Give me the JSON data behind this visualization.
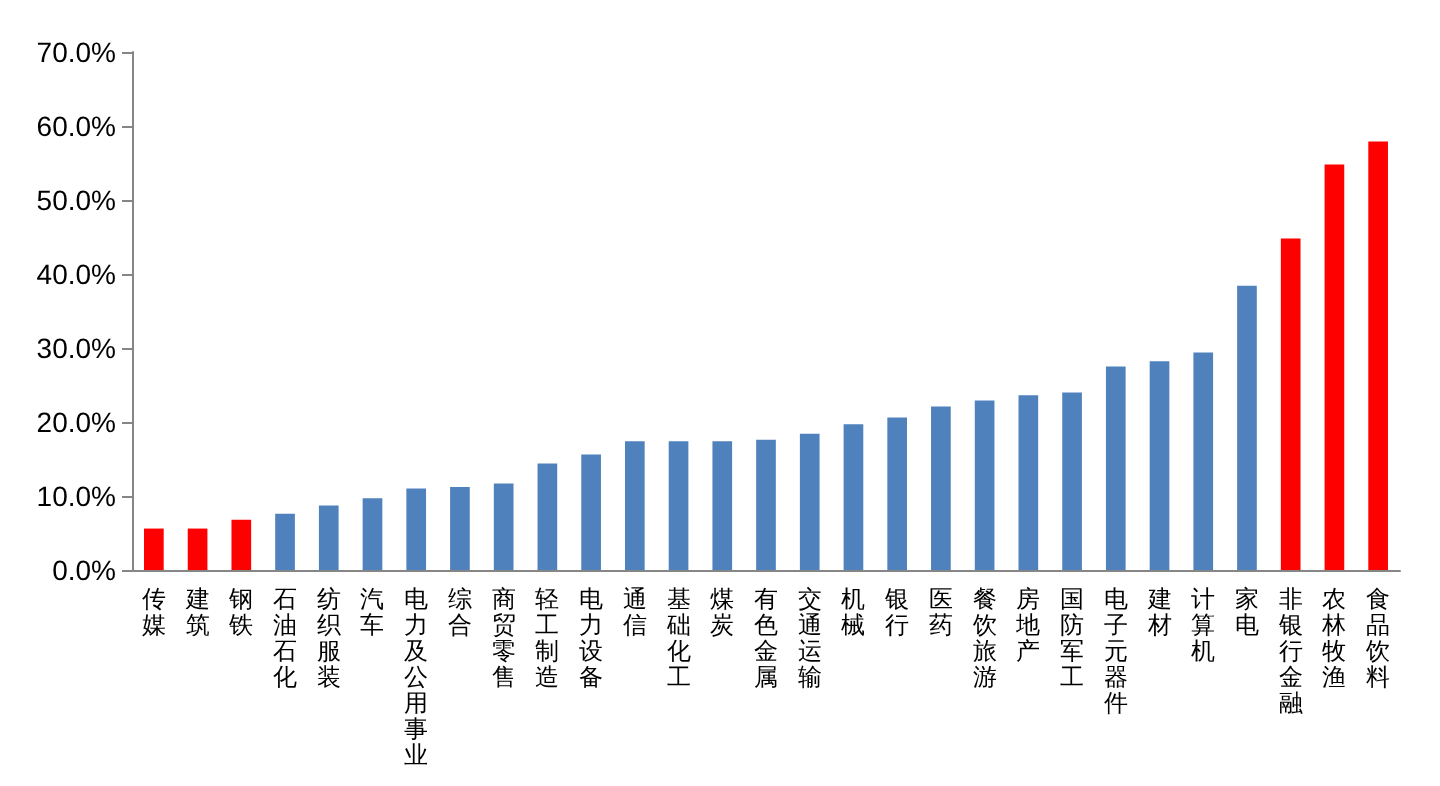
{
  "chart_data": {
    "type": "bar",
    "categories": [
      "传媒",
      "建筑",
      "钢铁",
      "石油石化",
      "纺织服装",
      "汽车",
      "电力及公用事业",
      "综合",
      "商贸零售",
      "轻工制造",
      "电力设备",
      "通信",
      "基础化工",
      "煤炭",
      "有色金属",
      "交通运输",
      "机械",
      "银行",
      "医药",
      "餐饮旅游",
      "房地产",
      "国防军工",
      "电子元器件",
      "建材",
      "计算机",
      "家电",
      "非银行金融",
      "农林牧渔",
      "食品饮料"
    ],
    "values": [
      5.6,
      5.6,
      6.8,
      7.6,
      8.7,
      9.7,
      11.0,
      11.2,
      11.7,
      14.4,
      15.6,
      17.4,
      17.4,
      17.4,
      17.6,
      18.4,
      19.7,
      20.6,
      22.1,
      22.9,
      23.6,
      24.0,
      27.5,
      28.2,
      29.4,
      38.4,
      44.8,
      54.8,
      57.9
    ],
    "colors": [
      "#ff0000",
      "#ff0000",
      "#ff0000",
      "#4f81bd",
      "#4f81bd",
      "#4f81bd",
      "#4f81bd",
      "#4f81bd",
      "#4f81bd",
      "#4f81bd",
      "#4f81bd",
      "#4f81bd",
      "#4f81bd",
      "#4f81bd",
      "#4f81bd",
      "#4f81bd",
      "#4f81bd",
      "#4f81bd",
      "#4f81bd",
      "#4f81bd",
      "#4f81bd",
      "#4f81bd",
      "#4f81bd",
      "#4f81bd",
      "#4f81bd",
      "#4f81bd",
      "#ff0000",
      "#ff0000",
      "#ff0000"
    ],
    "ylim": [
      0,
      70
    ],
    "yticks": [
      {
        "value": 0,
        "label": "0.0%"
      },
      {
        "value": 10,
        "label": "10.0%"
      },
      {
        "value": 20,
        "label": "20.0%"
      },
      {
        "value": 30,
        "label": "30.0%"
      },
      {
        "value": 40,
        "label": "40.0%"
      },
      {
        "value": 50,
        "label": "50.0%"
      },
      {
        "value": 60,
        "label": "60.0%"
      },
      {
        "value": 70,
        "label": "70.0%"
      }
    ],
    "grid": false
  }
}
